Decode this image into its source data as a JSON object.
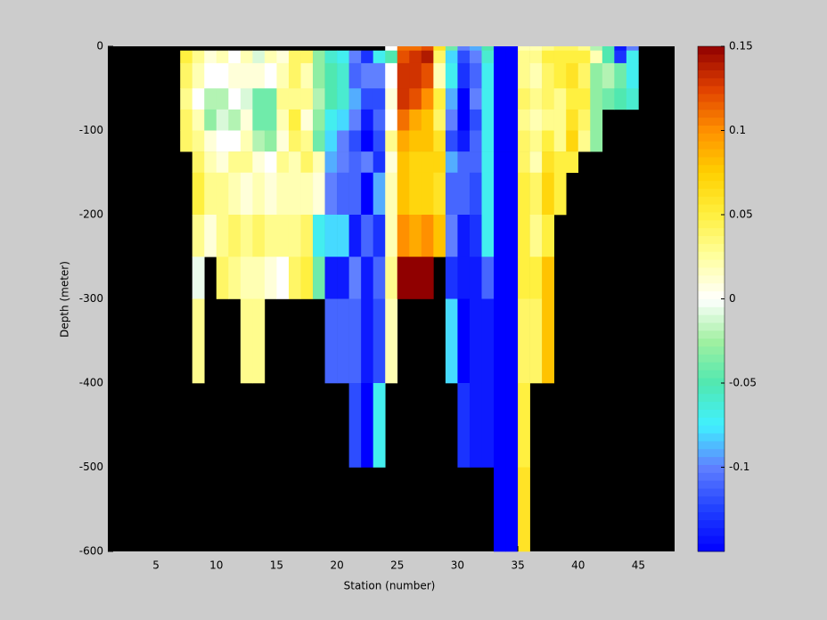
{
  "chart_data": {
    "type": "heatmap",
    "xlabel": "Station (number)",
    "ylabel": "Depth (meter)",
    "xlim": [
      1,
      48
    ],
    "ylim": [
      -600,
      0
    ],
    "xticks": [
      5,
      10,
      15,
      20,
      25,
      30,
      35,
      40,
      45
    ],
    "yticks": [
      -600,
      -500,
      -400,
      -300,
      -200,
      -100,
      0
    ],
    "clim": [
      -0.15,
      0.15
    ],
    "cticks": [
      -0.1,
      -0.05,
      0,
      0.05,
      0.1,
      0.15
    ],
    "colormap": [
      "#0000ff",
      "#2040ff",
      "#6080ff",
      "#40f0ff",
      "#50e8b0",
      "#a0f0a0",
      "#ffffff",
      "#ffffa0",
      "#fff040",
      "#ffd000",
      "#ff9000",
      "#e04000",
      "#900000"
    ],
    "background": "#000000",
    "depth_edges": [
      0,
      -5,
      -20,
      -50,
      -75,
      -100,
      -125,
      -150,
      -200,
      -250,
      -300,
      -400,
      -500,
      -600
    ],
    "x": [
      7,
      8,
      9,
      10,
      11,
      12,
      13,
      14,
      15,
      16,
      17,
      18,
      19,
      20,
      21,
      22,
      23,
      24,
      25,
      26,
      27,
      28,
      29,
      30,
      31,
      32,
      33,
      34,
      35,
      36,
      37,
      38,
      39,
      40,
      41,
      42,
      43,
      44
    ],
    "values": [
      [
        null,
        0.05,
        0.04,
        0.03,
        0.04,
        0.04,
        null,
        null,
        null,
        null,
        null,
        null,
        null
      ],
      [
        null,
        0.03,
        0.02,
        0.0,
        0.02,
        0.03,
        0.04,
        0.05,
        0.03,
        -0.005,
        0.03,
        null,
        null
      ],
      [
        null,
        0.01,
        0.0,
        -0.02,
        -0.03,
        0.01,
        0.02,
        0.03,
        0.01,
        null,
        null,
        null,
        null
      ],
      [
        null,
        0.02,
        0.0,
        -0.02,
        -0.01,
        0.0,
        0.01,
        0.03,
        0.03,
        0.04,
        null,
        null,
        null
      ],
      [
        null,
        0.0,
        0.01,
        0.0,
        -0.02,
        0.0,
        0.03,
        0.02,
        0.04,
        0.03,
        null,
        null,
        null
      ],
      [
        null,
        0.02,
        0.01,
        -0.01,
        0.01,
        0.02,
        0.03,
        0.01,
        0.03,
        0.02,
        0.03,
        null,
        null
      ],
      [
        null,
        -0.01,
        0.01,
        -0.04,
        -0.04,
        -0.02,
        0.01,
        0.02,
        0.04,
        0.02,
        0.03,
        null,
        null
      ],
      [
        null,
        0.02,
        0.0,
        -0.04,
        -0.04,
        -0.03,
        0.0,
        0.01,
        0.03,
        0.01,
        null,
        null,
        null
      ],
      [
        null,
        0.01,
        0.02,
        0.03,
        0.02,
        0.01,
        0.03,
        0.02,
        0.03,
        0.0,
        null,
        null,
        null
      ],
      [
        null,
        0.04,
        0.04,
        0.03,
        0.05,
        0.04,
        0.02,
        0.02,
        0.03,
        0.04,
        null,
        null,
        null
      ],
      [
        null,
        0.04,
        0.02,
        0.03,
        0.01,
        0.03,
        0.04,
        0.02,
        0.04,
        0.05,
        null,
        null,
        null
      ],
      [
        null,
        -0.03,
        -0.03,
        -0.02,
        -0.03,
        -0.04,
        0.02,
        0.01,
        -0.07,
        -0.04,
        null,
        null,
        null
      ],
      [
        null,
        -0.06,
        -0.05,
        -0.05,
        -0.07,
        -0.08,
        -0.09,
        -0.1,
        -0.08,
        -0.14,
        -0.11,
        null,
        null
      ],
      [
        null,
        -0.07,
        -0.06,
        -0.06,
        -0.08,
        -0.1,
        -0.1,
        -0.11,
        -0.08,
        -0.14,
        -0.11,
        null,
        null
      ],
      [
        null,
        -0.1,
        -0.11,
        -0.09,
        -0.1,
        -0.12,
        -0.11,
        -0.11,
        -0.14,
        -0.1,
        -0.11,
        -0.12,
        null
      ],
      [
        null,
        -0.13,
        -0.1,
        -0.12,
        -0.14,
        -0.15,
        -0.1,
        -0.15,
        -0.11,
        -0.14,
        -0.14,
        -0.15,
        null
      ],
      [
        null,
        -0.07,
        -0.1,
        -0.12,
        -0.11,
        -0.12,
        -0.13,
        -0.09,
        -0.13,
        -0.11,
        -0.12,
        -0.07,
        null
      ],
      [
        0.0,
        -0.05,
        0.0,
        0.01,
        0.0,
        0.03,
        0.01,
        0.02,
        0.02,
        0.03,
        0.02,
        null,
        null
      ],
      [
        0.11,
        0.12,
        0.13,
        0.13,
        0.11,
        0.09,
        0.08,
        0.08,
        0.1,
        0.15,
        null,
        null,
        null
      ],
      [
        0.11,
        0.13,
        0.13,
        0.12,
        0.09,
        0.08,
        0.07,
        0.07,
        0.09,
        0.15,
        null,
        null,
        null
      ],
      [
        0.12,
        0.14,
        0.12,
        0.1,
        0.08,
        0.08,
        0.07,
        0.07,
        0.1,
        0.15,
        null,
        null,
        null
      ],
      [
        0.06,
        0.04,
        0.02,
        0.05,
        0.04,
        0.06,
        0.07,
        0.06,
        0.08,
        null,
        null,
        null,
        null
      ],
      [
        -0.04,
        -0.08,
        -0.07,
        -0.09,
        -0.1,
        -0.12,
        -0.09,
        -0.11,
        -0.1,
        -0.13,
        -0.08,
        null,
        null
      ],
      [
        -0.1,
        -0.12,
        -0.13,
        -0.15,
        -0.15,
        -0.14,
        -0.11,
        -0.11,
        -0.14,
        -0.14,
        -0.15,
        -0.13,
        null
      ],
      [
        -0.09,
        -0.1,
        -0.11,
        -0.1,
        -0.12,
        -0.11,
        -0.11,
        -0.12,
        -0.13,
        -0.14,
        -0.14,
        -0.14,
        null
      ],
      [
        -0.05,
        -0.06,
        -0.07,
        -0.07,
        -0.07,
        -0.07,
        -0.07,
        -0.07,
        -0.07,
        -0.11,
        -0.14,
        -0.14,
        null
      ],
      [
        -0.15,
        -0.15,
        -0.15,
        -0.15,
        -0.15,
        -0.15,
        -0.15,
        -0.15,
        -0.15,
        -0.15,
        -0.15,
        -0.15,
        -0.15
      ],
      [
        -0.15,
        -0.15,
        -0.15,
        -0.15,
        -0.15,
        -0.15,
        -0.15,
        -0.15,
        -0.15,
        -0.15,
        -0.15,
        -0.15,
        -0.15
      ],
      [
        0.02,
        0.03,
        0.03,
        0.04,
        0.03,
        0.04,
        0.04,
        0.05,
        0.05,
        0.05,
        0.04,
        0.05,
        0.06
      ],
      [
        0.02,
        0.03,
        0.02,
        0.03,
        0.02,
        0.03,
        0.02,
        0.04,
        0.03,
        0.05,
        0.04,
        null,
        null
      ],
      [
        0.03,
        0.05,
        0.04,
        0.04,
        0.03,
        0.05,
        0.06,
        0.07,
        0.05,
        0.08,
        0.08,
        null,
        null
      ],
      [
        0.04,
        0.05,
        0.05,
        0.03,
        0.03,
        0.03,
        0.05,
        0.05,
        null,
        null,
        null,
        null,
        null
      ],
      [
        0.04,
        0.05,
        0.06,
        0.05,
        0.06,
        0.07,
        0.05,
        null,
        null,
        null,
        null,
        null,
        null
      ],
      [
        0.03,
        0.05,
        0.04,
        0.05,
        0.04,
        0.03,
        null,
        null,
        null,
        null,
        null,
        null,
        null
      ],
      [
        -0.02,
        0.02,
        -0.03,
        -0.03,
        -0.03,
        -0.03,
        null,
        null,
        null,
        null,
        null,
        null,
        null
      ],
      [
        -0.05,
        -0.05,
        -0.02,
        -0.04,
        null,
        null,
        null,
        null,
        null,
        null,
        null,
        null,
        null
      ],
      [
        -0.14,
        -0.13,
        -0.04,
        -0.05,
        null,
        null,
        null,
        null,
        null,
        null,
        null,
        null,
        null
      ],
      [
        -0.1,
        -0.07,
        -0.07,
        -0.06,
        null,
        null,
        null,
        null,
        null,
        null,
        null,
        null,
        null
      ]
    ]
  }
}
